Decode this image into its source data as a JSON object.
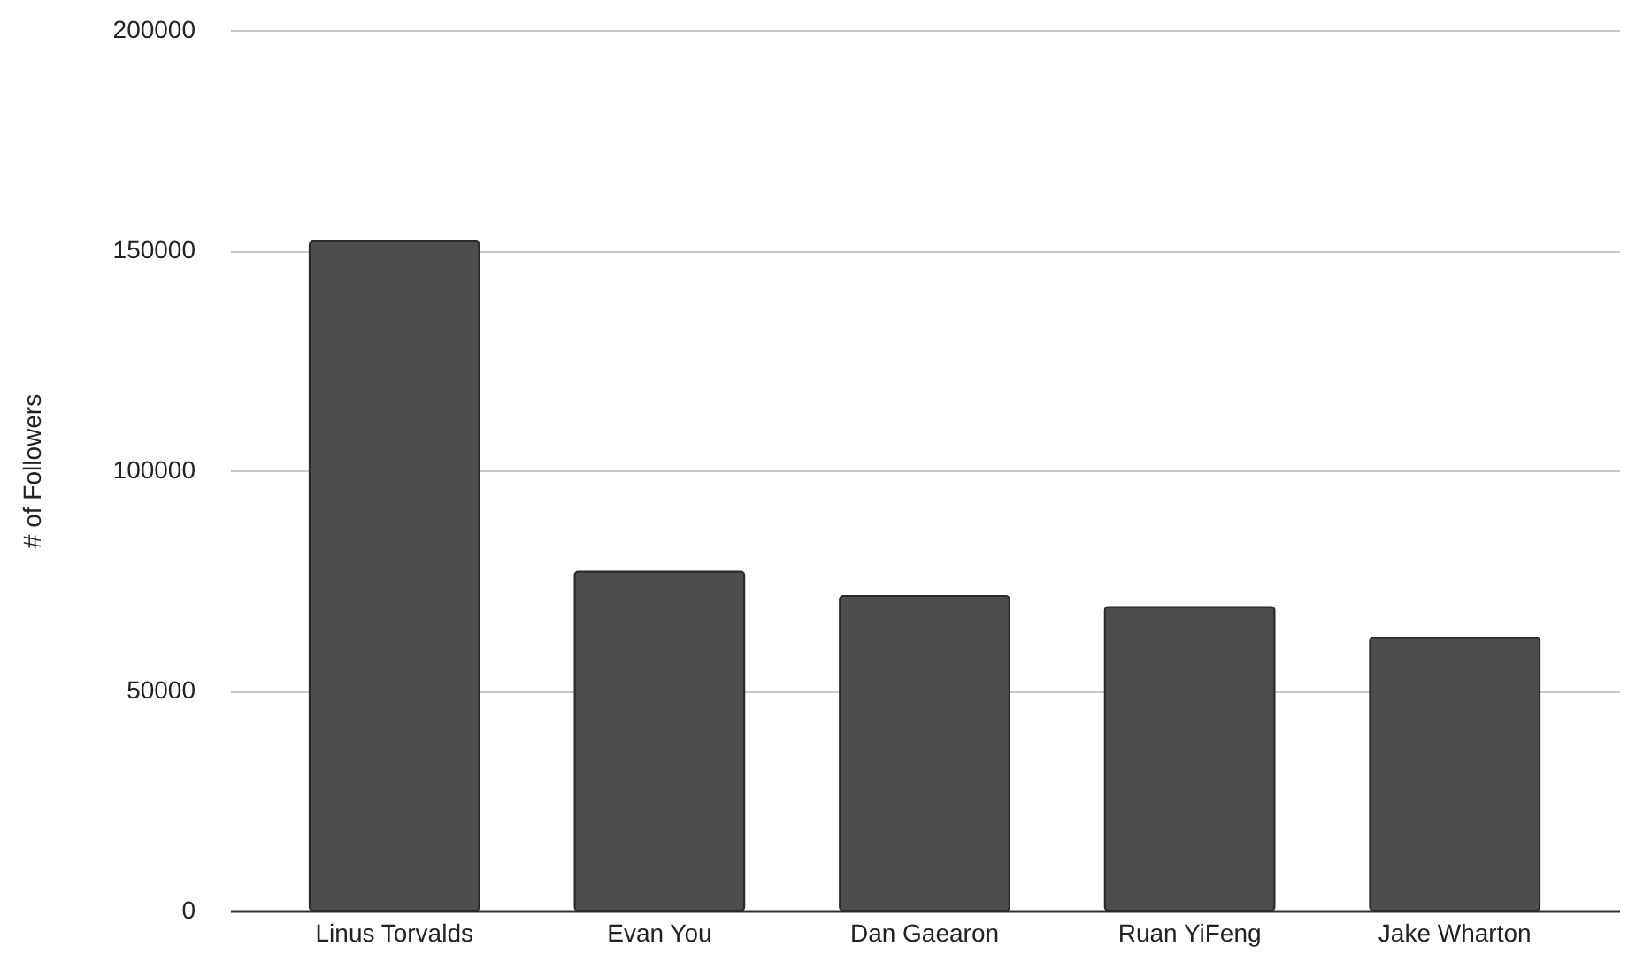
{
  "chart_data": {
    "type": "bar",
    "ylabel": "# of Followers",
    "categories": [
      "Linus Torvalds",
      "Evan You",
      "Dan Gaearon",
      "Ruan YiFeng",
      "Jake Wharton"
    ],
    "values": [
      152000,
      77000,
      71500,
      69000,
      62000
    ],
    "color": "#4d4d4d",
    "ylim": [
      0,
      200000
    ],
    "yticks": [
      0,
      50000,
      100000,
      150000,
      200000
    ],
    "grid": "y"
  }
}
